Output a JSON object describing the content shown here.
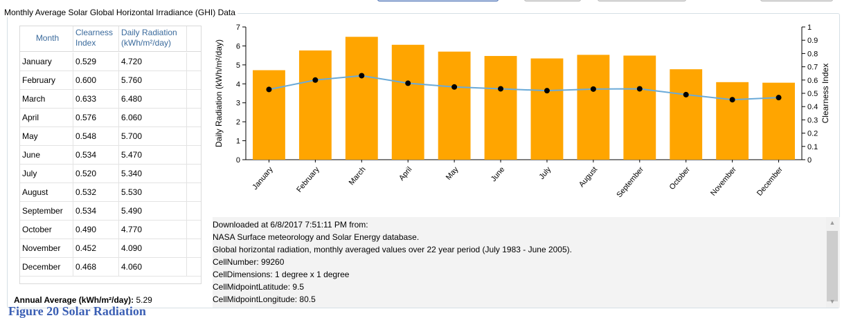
{
  "panel": {
    "title": "Monthly Average Solar Global Horizontal Irradiance (GHI) Data"
  },
  "table": {
    "headers": {
      "month": "Month",
      "clearness": "Clearness Index",
      "radiation": "Daily Radiation (kWh/m²/day)"
    },
    "rows": [
      {
        "month": "January",
        "clearness": "0.529",
        "radiation": "4.720"
      },
      {
        "month": "February",
        "clearness": "0.600",
        "radiation": "5.760"
      },
      {
        "month": "March",
        "clearness": "0.633",
        "radiation": "6.480"
      },
      {
        "month": "April",
        "clearness": "0.576",
        "radiation": "6.060"
      },
      {
        "month": "May",
        "clearness": "0.548",
        "radiation": "5.700"
      },
      {
        "month": "June",
        "clearness": "0.534",
        "radiation": "5.470"
      },
      {
        "month": "July",
        "clearness": "0.520",
        "radiation": "5.340"
      },
      {
        "month": "August",
        "clearness": "0.532",
        "radiation": "5.530"
      },
      {
        "month": "September",
        "clearness": "0.534",
        "radiation": "5.490"
      },
      {
        "month": "October",
        "clearness": "0.490",
        "radiation": "4.770"
      },
      {
        "month": "November",
        "clearness": "0.452",
        "radiation": "4.090"
      },
      {
        "month": "December",
        "clearness": "0.468",
        "radiation": "4.060"
      }
    ]
  },
  "annual": {
    "label": "Annual Average (kWh/m²/day):",
    "value": "5.29"
  },
  "chart_data": {
    "type": "bar",
    "categories": [
      "January",
      "February",
      "March",
      "April",
      "May",
      "June",
      "July",
      "August",
      "September",
      "October",
      "November",
      "December"
    ],
    "series": [
      {
        "name": "Daily Radiation",
        "type": "bar",
        "axis": "left",
        "color": "#ffa500",
        "values": [
          4.72,
          5.76,
          6.48,
          6.06,
          5.7,
          5.47,
          5.34,
          5.53,
          5.49,
          4.77,
          4.09,
          4.06
        ]
      },
      {
        "name": "Clearness Index",
        "type": "line",
        "axis": "right",
        "color": "#6aaad8",
        "marker_color": "#000000",
        "values": [
          0.529,
          0.6,
          0.633,
          0.576,
          0.548,
          0.534,
          0.52,
          0.532,
          0.534,
          0.49,
          0.452,
          0.468
        ]
      }
    ],
    "ylabel": "Daily Radiation (kWh/m²/day)",
    "y2label": "Clearness Index",
    "ylim": [
      0,
      7
    ],
    "y2lim": [
      0,
      1
    ],
    "yticks": [
      "0",
      "1",
      "2",
      "3",
      "4",
      "5",
      "6",
      "7"
    ],
    "y2ticks": [
      "0",
      "0.1",
      "0.2",
      "0.3",
      "0.4",
      "0.5",
      "0.6",
      "0.7",
      "0.8",
      "0.9",
      "1"
    ],
    "grid": false,
    "legend": "none"
  },
  "info": {
    "lines": [
      "Downloaded at 6/8/2017 7:51:11 PM from:",
      "NASA Surface meteorology and Solar Energy database.",
      "Global horizontal radiation, monthly averaged values over 22 year period (July 1983 - June 2005).",
      "CellNumber: 99260",
      "CellDimensions: 1 degree x 1 degree",
      "CellMidpointLatitude: 9.5",
      "CellMidpointLongitude: 80.5"
    ]
  },
  "footer": {
    "heading": "Figure 20 Solar Radiation"
  }
}
